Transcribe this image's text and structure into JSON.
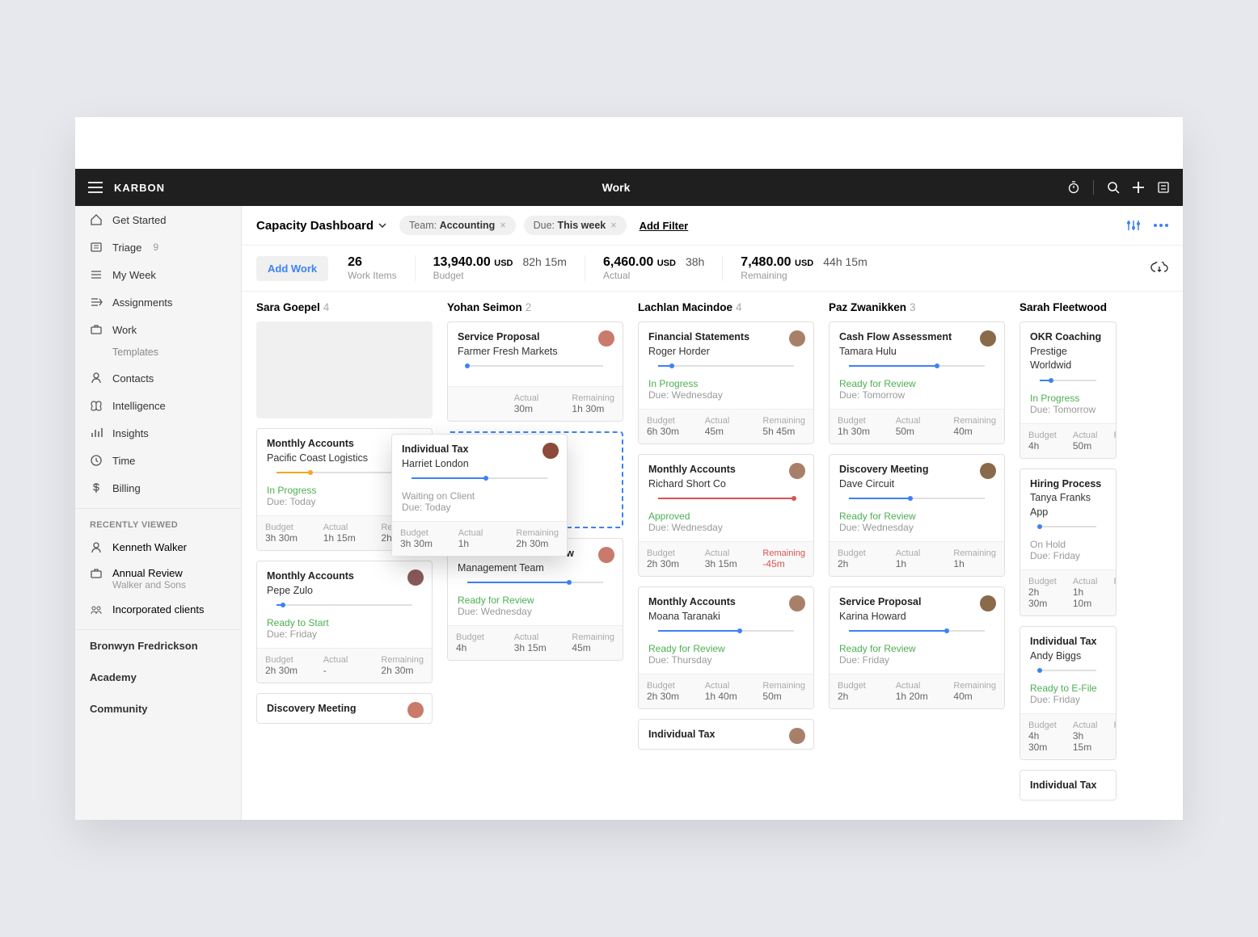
{
  "brand": "KARBON",
  "header_title": "Work",
  "sidebar": {
    "nav": [
      {
        "icon": "home",
        "label": "Get Started"
      },
      {
        "icon": "inbox",
        "label": "Triage",
        "badge": "9"
      },
      {
        "icon": "list",
        "label": "My Week"
      },
      {
        "icon": "arrow",
        "label": "Assignments"
      },
      {
        "icon": "briefcase",
        "label": "Work",
        "sub": "Templates"
      },
      {
        "icon": "user",
        "label": "Contacts"
      },
      {
        "icon": "brain",
        "label": "Intelligence"
      },
      {
        "icon": "chart",
        "label": "Insights"
      },
      {
        "icon": "clock",
        "label": "Time"
      },
      {
        "icon": "dollar",
        "label": "Billing"
      }
    ],
    "recent_label": "RECENTLY VIEWED",
    "recent": [
      {
        "icon": "user",
        "title": "Kenneth Walker"
      },
      {
        "icon": "briefcase",
        "title": "Annual Review",
        "sub": "Walker and Sons"
      },
      {
        "icon": "group",
        "title": "Incorporated clients"
      }
    ],
    "footer": [
      "Bronwyn Fredrickson",
      "Academy",
      "Community"
    ]
  },
  "page": {
    "title": "Capacity Dashboard",
    "filters": [
      {
        "label": "Team:",
        "value": "Accounting"
      },
      {
        "label": "Due:",
        "value": "This week"
      }
    ],
    "add_filter": "Add Filter"
  },
  "stats": {
    "add_work": "Add Work",
    "count": {
      "n": "26",
      "label": "Work Items"
    },
    "budget": {
      "amount": "13,940.00",
      "currency": "USD",
      "time": "82h 15m",
      "label": "Budget"
    },
    "actual": {
      "amount": "6,460.00",
      "currency": "USD",
      "time": "38h",
      "label": "Actual"
    },
    "remaining": {
      "amount": "7,480.00",
      "currency": "USD",
      "time": "44h 15m",
      "label": "Remaining"
    }
  },
  "colors": {
    "accent_blue": "#3b82f6",
    "green": "#4caf50",
    "red": "#d9534f",
    "orange": "#f5a623",
    "grey_text": "#999"
  },
  "floating": {
    "title": "Individual Tax",
    "sub": "Harriet London",
    "progress": 55,
    "progress_color": "#3b82f6",
    "status": "Waiting on Client",
    "status_color": "#999",
    "due": "Due: Today",
    "avatar": "#8b4a3a",
    "metrics": {
      "budget": "3h 30m",
      "actual": "1h",
      "remaining": "2h 30m"
    }
  },
  "columns": [
    {
      "name": "Sara Goepel",
      "count": "4",
      "placeholder": true,
      "cards": [
        {
          "title": "Monthly Accounts",
          "sub": "Pacific Coast Logistics",
          "avatar": "#c97a6a",
          "progress": 25,
          "progress_color": "#f5a623",
          "status": "In Progress",
          "status_color": "#4caf50",
          "due": "Due: Today",
          "budget": "3h 30m",
          "actual": "1h 15m",
          "remaining": "2h 15m"
        },
        {
          "title": "Monthly Accounts",
          "sub": "Pepe Zulo",
          "avatar": "#8b5a5a",
          "progress": 5,
          "progress_color": "#3b82f6",
          "status": "Ready to Start",
          "status_color": "#4caf50",
          "due": "Due: Friday",
          "budget": "2h 30m",
          "actual": "-",
          "remaining": "2h 30m"
        },
        {
          "title": "Discovery Meeting",
          "sub": "",
          "avatar": "#c97a6a",
          "partial": true
        }
      ]
    },
    {
      "name": "Yohan Seimon",
      "count": "2",
      "cards": [
        {
          "title": "Service Proposal",
          "sub": "Farmer Fresh Markets",
          "avatar": "#c97a6a",
          "progress": 0,
          "progress_color": "#3b82f6",
          "status": "",
          "status_color": "#999",
          "due": "",
          "budget": "",
          "actual": "30m",
          "remaining": "1h 30m",
          "label_budget": "",
          "label_actual": "Actual",
          "label_remaining": "Remaining"
        },
        {
          "dropzone": true
        },
        {
          "title": "Internal Process Review",
          "sub": "Management Team",
          "avatar": "#c97a6a",
          "progress": 75,
          "progress_color": "#3b82f6",
          "status": "Ready for Review",
          "status_color": "#4caf50",
          "due": "Due: Wednesday",
          "budget": "4h",
          "actual": "3h 15m",
          "remaining": "45m"
        }
      ]
    },
    {
      "name": "Lachlan Macindoe",
      "count": "4",
      "cards": [
        {
          "title": "Financial Statements",
          "sub": "Roger Horder",
          "avatar": "#a8806a",
          "progress": 10,
          "progress_color": "#3b82f6",
          "status": "In Progress",
          "status_color": "#4caf50",
          "due": "Due: Wednesday",
          "budget": "6h 30m",
          "actual": "45m",
          "remaining": "5h 45m"
        },
        {
          "title": "Monthly Accounts",
          "sub": "Richard Short Co",
          "avatar": "#a8806a",
          "progress": 100,
          "progress_color": "#d9534f",
          "status": "Approved",
          "status_color": "#4caf50",
          "due": "Due: Wednesday",
          "budget": "2h 30m",
          "actual": "3h 15m",
          "remaining": "-45m",
          "over": true
        },
        {
          "title": "Monthly Accounts",
          "sub": "Moana Taranaki",
          "avatar": "#a8806a",
          "progress": 60,
          "progress_color": "#3b82f6",
          "status": "Ready for Review",
          "status_color": "#4caf50",
          "due": "Due: Thursday",
          "budget": "2h 30m",
          "actual": "1h 40m",
          "remaining": "50m"
        },
        {
          "title": "Individual Tax",
          "sub": "",
          "avatar": "#a8806a",
          "partial": true
        }
      ]
    },
    {
      "name": "Paz Zwanikken",
      "count": "3",
      "cards": [
        {
          "title": "Cash Flow Assessment",
          "sub": "Tamara Hulu",
          "avatar": "#8a6a4a",
          "progress": 65,
          "progress_color": "#3b82f6",
          "status": "Ready for Review",
          "status_color": "#4caf50",
          "due": "Due: Tomorrow",
          "budget": "1h 30m",
          "actual": "50m",
          "remaining": "40m"
        },
        {
          "title": "Discovery Meeting",
          "sub": "Dave Circuit",
          "avatar": "#8a6a4a",
          "progress": 45,
          "progress_color": "#3b82f6",
          "status": "Ready for Review",
          "status_color": "#4caf50",
          "due": "Due: Wednesday",
          "budget": "2h",
          "actual": "1h",
          "remaining": "1h"
        },
        {
          "title": "Service Proposal",
          "sub": "Karina Howard",
          "avatar": "#8a6a4a",
          "progress": 72,
          "progress_color": "#3b82f6",
          "status": "Ready for Review",
          "status_color": "#4caf50",
          "due": "Due: Friday",
          "budget": "2h",
          "actual": "1h 20m",
          "remaining": "40m"
        }
      ]
    },
    {
      "name": "Sarah Fleetwood",
      "count": "",
      "clipped": true,
      "cards": [
        {
          "title": "OKR Coaching",
          "sub": "Prestige Worldwid",
          "avatar": "",
          "progress": 20,
          "progress_color": "#3b82f6",
          "status": "In Progress",
          "status_color": "#4caf50",
          "due": "Due: Tomorrow",
          "budget": "4h",
          "actual": "50m",
          "remaining": ""
        },
        {
          "title": "Hiring Process",
          "sub": "Tanya Franks App",
          "avatar": "",
          "progress": 0,
          "progress_color": "#3b82f6",
          "status": "On Hold",
          "status_color": "#999",
          "due": "Due: Friday",
          "budget": "2h 30m",
          "actual": "1h 10m",
          "remaining": ""
        },
        {
          "title": "Individual Tax",
          "sub": "Andy Biggs",
          "avatar": "",
          "progress": 0,
          "progress_color": "#3b82f6",
          "status": "Ready to E-File",
          "status_color": "#4caf50",
          "due": "Due: Friday",
          "budget": "4h 30m",
          "actual": "3h 15m",
          "remaining": ""
        },
        {
          "title": "Individual Tax",
          "sub": "",
          "avatar": "",
          "partial": true
        }
      ]
    }
  ],
  "metric_labels": {
    "budget": "Budget",
    "actual": "Actual",
    "remaining": "Remaining"
  }
}
